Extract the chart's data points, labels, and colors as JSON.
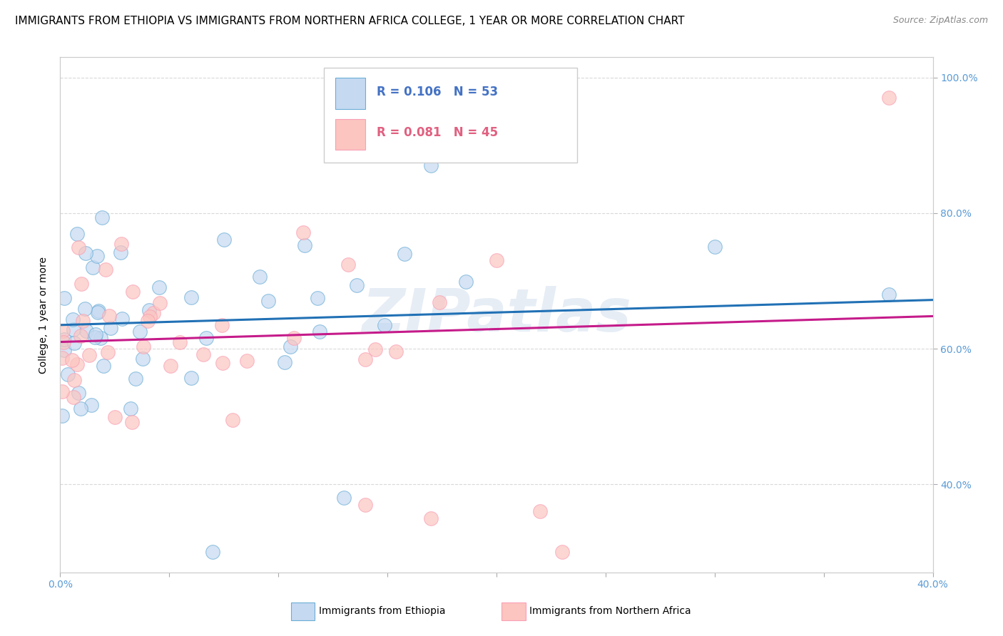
{
  "title": "IMMIGRANTS FROM ETHIOPIA VS IMMIGRANTS FROM NORTHERN AFRICA COLLEGE, 1 YEAR OR MORE CORRELATION CHART",
  "source": "Source: ZipAtlas.com",
  "ylabel": "College, 1 year or more",
  "xlim": [
    0.0,
    0.4
  ],
  "ylim": [
    0.27,
    1.03
  ],
  "ytick_vals": [
    0.4,
    0.6,
    0.8,
    1.0
  ],
  "xtick_vals": [
    0.0,
    0.05,
    0.1,
    0.15,
    0.2,
    0.25,
    0.3,
    0.35,
    0.4
  ],
  "series_blue": {
    "label": "Immigrants from Ethiopia",
    "R": 0.106,
    "N": 53,
    "color_fill": "#c5d9f1",
    "color_edge": "#6baed6",
    "color_line": "#2171b5",
    "color_text": "#4472c4",
    "trend_x0": 0.0,
    "trend_y0": 0.635,
    "trend_x1": 0.4,
    "trend_y1": 0.672
  },
  "series_pink": {
    "label": "Immigrants from Northern Africa",
    "R": 0.081,
    "N": 45,
    "color_fill": "#fcc5c0",
    "color_edge": "#fa9fb5",
    "color_line": "#c51b8a",
    "color_text": "#e06080",
    "trend_x0": 0.0,
    "trend_y0": 0.61,
    "trend_x1": 0.4,
    "trend_y1": 0.648
  },
  "background_color": "#ffffff",
  "grid_color": "#d9d9d9",
  "watermark": "ZIPatlas",
  "title_fontsize": 11,
  "axis_label_fontsize": 10,
  "tick_fontsize": 10,
  "tick_color": "#5b9bd5"
}
